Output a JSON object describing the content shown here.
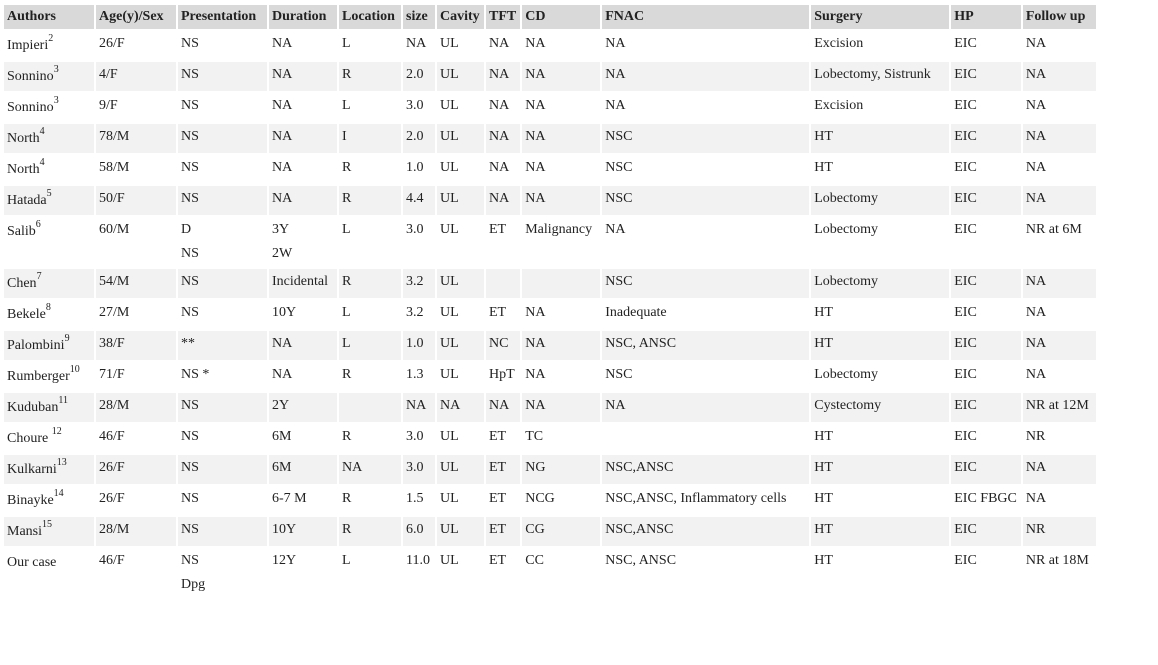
{
  "table": {
    "headers": [
      "Authors",
      "Age(y)/Sex",
      "Presentation",
      "Duration",
      "Location",
      "size",
      "Cavity",
      "TFT",
      "CD",
      "FNAC",
      "Surgery",
      "HP",
      "Follow up"
    ],
    "rows": [
      {
        "author": "Impieri",
        "ref": "2",
        "cells": [
          [
            "26/F"
          ],
          [
            "NS"
          ],
          [
            "NA"
          ],
          [
            "L"
          ],
          [
            "NA"
          ],
          [
            "UL"
          ],
          [
            "NA"
          ],
          [
            "NA"
          ],
          [
            "NA"
          ],
          [
            "Excision"
          ],
          [
            "EIC"
          ],
          [
            "NA"
          ]
        ]
      },
      {
        "author": "Sonnino",
        "ref": "3",
        "cells": [
          [
            "4/F"
          ],
          [
            "NS"
          ],
          [
            "NA"
          ],
          [
            "R"
          ],
          [
            "2.0"
          ],
          [
            "UL"
          ],
          [
            "NA"
          ],
          [
            "NA"
          ],
          [
            "NA"
          ],
          [
            "Lobectomy, Sistrunk"
          ],
          [
            "EIC"
          ],
          [
            "NA"
          ]
        ]
      },
      {
        "author": "Sonnino",
        "ref": "3",
        "cells": [
          [
            "9/F"
          ],
          [
            "NS"
          ],
          [
            "NA"
          ],
          [
            "L"
          ],
          [
            "3.0"
          ],
          [
            "UL"
          ],
          [
            "NA"
          ],
          [
            "NA"
          ],
          [
            "NA"
          ],
          [
            "Excision"
          ],
          [
            "EIC"
          ],
          [
            "NA"
          ]
        ]
      },
      {
        "author": "North",
        "ref": "4",
        "cells": [
          [
            "78/M"
          ],
          [
            "NS"
          ],
          [
            "NA"
          ],
          [
            "I"
          ],
          [
            "2.0"
          ],
          [
            "UL"
          ],
          [
            "NA"
          ],
          [
            "NA"
          ],
          [
            "NSC"
          ],
          [
            "HT"
          ],
          [
            "EIC"
          ],
          [
            "NA"
          ]
        ]
      },
      {
        "author": "North",
        "ref": "4",
        "cells": [
          [
            "58/M"
          ],
          [
            "NS"
          ],
          [
            "NA"
          ],
          [
            "R"
          ],
          [
            "1.0"
          ],
          [
            "UL"
          ],
          [
            "NA"
          ],
          [
            "NA"
          ],
          [
            "NSC"
          ],
          [
            "HT"
          ],
          [
            "EIC"
          ],
          [
            "NA"
          ]
        ]
      },
      {
        "author": "Hatada",
        "ref": "5",
        "cells": [
          [
            "50/F"
          ],
          [
            "NS"
          ],
          [
            "NA"
          ],
          [
            "R"
          ],
          [
            "4.4"
          ],
          [
            "UL"
          ],
          [
            "NA"
          ],
          [
            "NA"
          ],
          [
            "NSC"
          ],
          [
            "Lobectomy"
          ],
          [
            "EIC"
          ],
          [
            "NA"
          ]
        ]
      },
      {
        "author": "Salib",
        "ref": "6",
        "cells": [
          [
            "60/M"
          ],
          [
            "D",
            "NS"
          ],
          [
            "3Y",
            "2W"
          ],
          [
            "L"
          ],
          [
            "3.0"
          ],
          [
            "UL"
          ],
          [
            "ET"
          ],
          [
            "Malignancy"
          ],
          [
            "NA"
          ],
          [
            "Lobectomy"
          ],
          [
            "EIC"
          ],
          [
            "NR at 6M"
          ]
        ]
      },
      {
        "author": "Chen",
        "ref": "7",
        "cells": [
          [
            "54/M"
          ],
          [
            "NS"
          ],
          [
            "Incidental"
          ],
          [
            "R"
          ],
          [
            "3.2"
          ],
          [
            "UL"
          ],
          [
            ""
          ],
          [
            ""
          ],
          [
            "NSC"
          ],
          [
            "Lobectomy"
          ],
          [
            "EIC"
          ],
          [
            "NA"
          ]
        ]
      },
      {
        "author": "Bekele",
        "ref": "8",
        "cells": [
          [
            "27/M"
          ],
          [
            "NS"
          ],
          [
            "10Y"
          ],
          [
            "L"
          ],
          [
            "3.2"
          ],
          [
            "UL"
          ],
          [
            "ET"
          ],
          [
            "NA"
          ],
          [
            "Inadequate"
          ],
          [
            "HT"
          ],
          [
            "EIC"
          ],
          [
            "NA"
          ]
        ]
      },
      {
        "author": "Palombini",
        "ref": "9",
        "cells": [
          [
            "38/F"
          ],
          [
            "**"
          ],
          [
            "NA"
          ],
          [
            "L"
          ],
          [
            "1.0"
          ],
          [
            "UL"
          ],
          [
            "NC"
          ],
          [
            "NA"
          ],
          [
            "NSC, ANSC"
          ],
          [
            "HT"
          ],
          [
            "EIC"
          ],
          [
            "NA"
          ]
        ]
      },
      {
        "author": "Rumberger",
        "ref": "10",
        "cells": [
          [
            "71/F"
          ],
          [
            "NS *"
          ],
          [
            "NA"
          ],
          [
            "R"
          ],
          [
            "1.3"
          ],
          [
            "UL"
          ],
          [
            "HpT"
          ],
          [
            "NA"
          ],
          [
            "NSC"
          ],
          [
            "Lobectomy"
          ],
          [
            "EIC"
          ],
          [
            "NA"
          ]
        ]
      },
      {
        "author": "Kuduban",
        "ref": "11",
        "cells": [
          [
            "28/M"
          ],
          [
            "NS"
          ],
          [
            "2Y"
          ],
          [
            ""
          ],
          [
            "NA"
          ],
          [
            "NA"
          ],
          [
            "NA"
          ],
          [
            "NA"
          ],
          [
            "NA"
          ],
          [
            "Cystectomy"
          ],
          [
            "EIC"
          ],
          [
            "NR at 12M"
          ]
        ]
      },
      {
        "author": "Choure ",
        "ref": "12",
        "cells": [
          [
            "46/F"
          ],
          [
            "NS"
          ],
          [
            "6M"
          ],
          [
            "R"
          ],
          [
            "3.0"
          ],
          [
            "UL"
          ],
          [
            "ET"
          ],
          [
            "TC"
          ],
          [
            ""
          ],
          [
            "HT"
          ],
          [
            "EIC"
          ],
          [
            "NR"
          ]
        ]
      },
      {
        "author": "Kulkarni",
        "ref": "13",
        "cells": [
          [
            "26/F"
          ],
          [
            "NS"
          ],
          [
            "6M"
          ],
          [
            "NA"
          ],
          [
            "3.0"
          ],
          [
            "UL"
          ],
          [
            "ET"
          ],
          [
            "NG"
          ],
          [
            "NSC,ANSC"
          ],
          [
            "HT"
          ],
          [
            "EIC"
          ],
          [
            "NA"
          ]
        ]
      },
      {
        "author": "Binayke",
        "ref": "14",
        "cells": [
          [
            "26/F"
          ],
          [
            "NS"
          ],
          [
            "6-7 M"
          ],
          [
            "R"
          ],
          [
            "1.5"
          ],
          [
            "UL"
          ],
          [
            "ET"
          ],
          [
            "NCG"
          ],
          [
            "NSC,ANSC, Inflammatory cells"
          ],
          [
            "HT"
          ],
          [
            "EIC FBGC"
          ],
          [
            "NA"
          ]
        ]
      },
      {
        "author": "Mansi",
        "ref": "15",
        "cells": [
          [
            "28/M"
          ],
          [
            "NS"
          ],
          [
            "10Y"
          ],
          [
            "R"
          ],
          [
            "6.0"
          ],
          [
            "UL"
          ],
          [
            "ET"
          ],
          [
            "CG"
          ],
          [
            "NSC,ANSC"
          ],
          [
            "HT"
          ],
          [
            "EIC"
          ],
          [
            "NR"
          ]
        ]
      },
      {
        "author": "Our case",
        "ref": "",
        "cells": [
          [
            "46/F"
          ],
          [
            "NS",
            "Dpg"
          ],
          [
            "12Y"
          ],
          [
            "L"
          ],
          [
            "11.0"
          ],
          [
            "UL"
          ],
          [
            "ET"
          ],
          [
            "CC"
          ],
          [
            "NSC, ANSC"
          ],
          [
            "HT"
          ],
          [
            "EIC"
          ],
          [
            "NR at 18M"
          ]
        ]
      }
    ]
  }
}
